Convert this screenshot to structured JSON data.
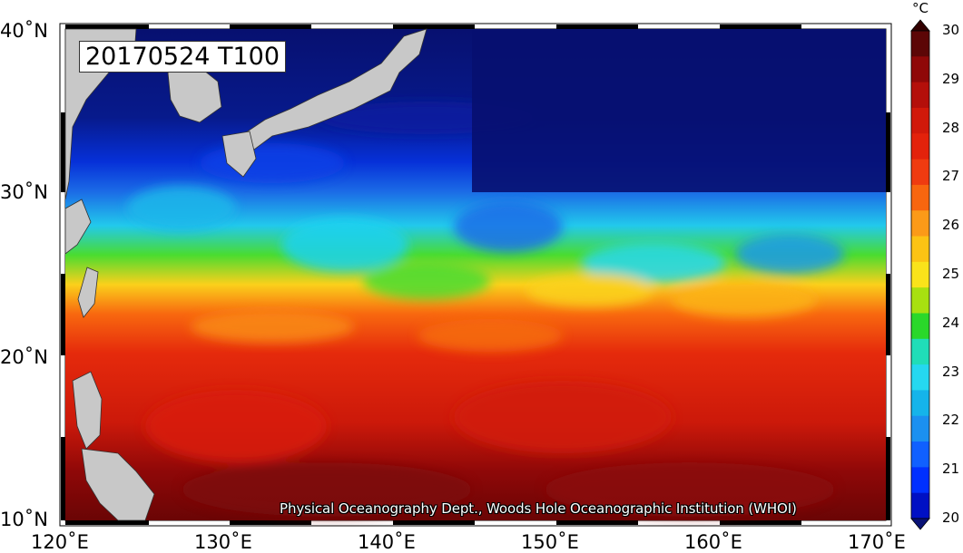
{
  "map": {
    "title": "20170524 T100",
    "credit": "Physical Oceanography Dept., Woods Hole Oceanographic Institution (WHOI)",
    "lon_labels": [
      "120˚E",
      "130˚E",
      "140˚E",
      "150˚E",
      "160˚E",
      "170˚E"
    ],
    "lat_labels": [
      "40˚N",
      "30˚N",
      "20˚N",
      "10˚N"
    ],
    "lon_range": [
      120,
      170
    ],
    "lat_range": [
      10,
      40
    ],
    "land_color": "#c8c8c8"
  },
  "colorbar": {
    "unit": "°C",
    "min": 20,
    "max": 30,
    "labels": [
      "30",
      "29",
      "28",
      "27",
      "26",
      "25",
      "24",
      "23",
      "22",
      "21",
      "20"
    ],
    "colors": [
      "#0a1276",
      "#0010c4",
      "#0030ff",
      "#1060ff",
      "#1b90f0",
      "#15b4ea",
      "#25d8f0",
      "#20ddb8",
      "#2ad82a",
      "#a8e010",
      "#fae31a",
      "#fcc314",
      "#fb9a18",
      "#f8660f",
      "#ef3b10",
      "#e3220b",
      "#d1190a",
      "#b40f0a",
      "#8f0808",
      "#5c0606",
      "#330000"
    ]
  },
  "chart_data": {
    "type": "heatmap",
    "title": "20170524 T100",
    "variable": "T100",
    "date": "20170524",
    "x_range": [
      120,
      170
    ],
    "y_range": [
      10,
      40
    ],
    "x_ticks": [
      120,
      130,
      140,
      150,
      160,
      170
    ],
    "y_ticks": [
      10,
      20,
      30,
      40
    ],
    "color_range": [
      20,
      30
    ],
    "color_unit": "°C",
    "zonal_temperature_profile": [
      {
        "lat": 10,
        "value": 29.5
      },
      {
        "lat": 14,
        "value": 28.8
      },
      {
        "lat": 18,
        "value": 27.8
      },
      {
        "lat": 21,
        "value": 26.5
      },
      {
        "lat": 23,
        "value": 24.8
      },
      {
        "lat": 25,
        "value": 23.5
      },
      {
        "lat": 27,
        "value": 22.2
      },
      {
        "lat": 30,
        "value": 21.3
      },
      {
        "lat": 34,
        "value": 20.2
      },
      {
        "lat": 40,
        "value": 20.0
      }
    ]
  }
}
